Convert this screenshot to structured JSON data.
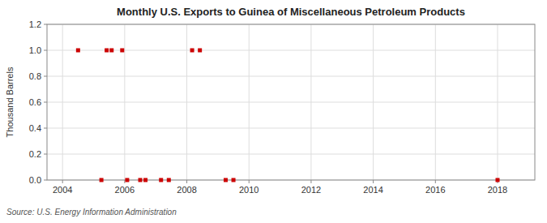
{
  "chart_data": {
    "type": "scatter",
    "title": "Monthly U.S. Exports to Guinea of Miscellaneous Petroleum Products",
    "ylabel": "Thousand Barrels",
    "source": "Source: U.S. Energy Information Administration",
    "x": [
      2004.5,
      2005.25,
      2005.42,
      2005.58,
      2005.92,
      2006.08,
      2006.5,
      2006.67,
      2007.17,
      2007.42,
      2008.17,
      2008.42,
      2009.25,
      2009.5,
      2018.0
    ],
    "values": [
      1.0,
      0.0,
      1.0,
      1.0,
      1.0,
      0.0,
      0.0,
      0.0,
      0.0,
      0.0,
      1.0,
      1.0,
      0.0,
      0.0,
      0.0
    ],
    "color": "#cc0000",
    "marker": "square",
    "xlim": [
      2003.5,
      2019.2
    ],
    "ylim": [
      0.0,
      1.2
    ],
    "xticks": [
      2004,
      2006,
      2008,
      2010,
      2012,
      2014,
      2016,
      2018
    ],
    "yticks": [
      {
        "value": 0.0,
        "label": "0.0"
      },
      0.2,
      0.4,
      0.6,
      0.8,
      {
        "value": 1.0,
        "label": "1.0"
      },
      1.2
    ],
    "grid": true
  }
}
